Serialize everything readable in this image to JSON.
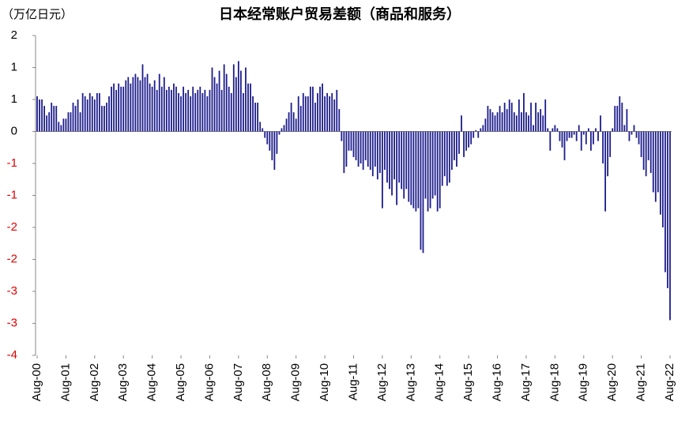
{
  "chart_data": {
    "type": "bar",
    "title": "日本经常账户贸易差额（商品和服务）",
    "unit_label": "（万亿日元）",
    "color": "#1c1c8c",
    "tick_color": "#000000",
    "negative_tick_color": "#e00000",
    "ylim": [
      -3.5,
      1.5
    ],
    "yticks": [
      {
        "value": 1.5,
        "label": "2"
      },
      1,
      {
        "value": 0.5,
        "label": "1"
      },
      0,
      {
        "value": -0.5,
        "label": "-1"
      },
      -1,
      {
        "value": -1.5,
        "label": "-2"
      },
      -2,
      {
        "value": -2.5,
        "label": "-3"
      },
      -3,
      {
        "value": -3.5,
        "label": "-4"
      }
    ],
    "categories": [
      "Aug-00",
      null,
      null,
      null,
      null,
      null,
      null,
      null,
      null,
      null,
      null,
      null,
      "Aug-01",
      null,
      null,
      null,
      null,
      null,
      null,
      null,
      null,
      null,
      null,
      null,
      "Aug-02",
      null,
      null,
      null,
      null,
      null,
      null,
      null,
      null,
      null,
      null,
      null,
      "Aug-03",
      null,
      null,
      null,
      null,
      null,
      null,
      null,
      null,
      null,
      null,
      null,
      "Aug-04",
      null,
      null,
      null,
      null,
      null,
      null,
      null,
      null,
      null,
      null,
      null,
      "Aug-05",
      null,
      null,
      null,
      null,
      null,
      null,
      null,
      null,
      null,
      null,
      null,
      "Aug-06",
      null,
      null,
      null,
      null,
      null,
      null,
      null,
      null,
      null,
      null,
      null,
      "Aug-07",
      null,
      null,
      null,
      null,
      null,
      null,
      null,
      null,
      null,
      null,
      null,
      "Aug-08",
      null,
      null,
      null,
      null,
      null,
      null,
      null,
      null,
      null,
      null,
      null,
      "Aug-09",
      null,
      null,
      null,
      null,
      null,
      null,
      null,
      null,
      null,
      null,
      null,
      "Aug-10",
      null,
      null,
      null,
      null,
      null,
      null,
      null,
      null,
      null,
      null,
      null,
      "Aug-11",
      null,
      null,
      null,
      null,
      null,
      null,
      null,
      null,
      null,
      null,
      null,
      "Aug-12",
      null,
      null,
      null,
      null,
      null,
      null,
      null,
      null,
      null,
      null,
      null,
      "Aug-13",
      null,
      null,
      null,
      null,
      null,
      null,
      null,
      null,
      null,
      null,
      null,
      "Aug-14",
      null,
      null,
      null,
      null,
      null,
      null,
      null,
      null,
      null,
      null,
      null,
      "Aug-15",
      null,
      null,
      null,
      null,
      null,
      null,
      null,
      null,
      null,
      null,
      null,
      "Aug-16",
      null,
      null,
      null,
      null,
      null,
      null,
      null,
      null,
      null,
      null,
      null,
      "Aug-17",
      null,
      null,
      null,
      null,
      null,
      null,
      null,
      null,
      null,
      null,
      null,
      "Aug-18",
      null,
      null,
      null,
      null,
      null,
      null,
      null,
      null,
      null,
      null,
      null,
      "Aug-19",
      null,
      null,
      null,
      null,
      null,
      null,
      null,
      null,
      null,
      null,
      null,
      "Aug-20",
      null,
      null,
      null,
      null,
      null,
      null,
      null,
      null,
      null,
      null,
      null,
      "Aug-21",
      null,
      null,
      null,
      null,
      null,
      null,
      null,
      null,
      null,
      null,
      null,
      "Aug-22"
    ],
    "values": [
      0.55,
      0.5,
      0.5,
      0.4,
      0.25,
      0.3,
      0.45,
      0.4,
      0.4,
      0.15,
      0.1,
      0.2,
      0.2,
      0.3,
      0.3,
      0.45,
      0.4,
      0.5,
      0.3,
      0.6,
      0.55,
      0.5,
      0.6,
      0.55,
      0.5,
      0.6,
      0.6,
      0.4,
      0.4,
      0.45,
      0.55,
      0.7,
      0.75,
      0.65,
      0.75,
      0.7,
      0.7,
      0.8,
      0.85,
      0.75,
      0.85,
      0.9,
      0.85,
      0.8,
      1.05,
      0.85,
      0.9,
      0.75,
      0.7,
      0.8,
      0.65,
      0.9,
      0.7,
      0.85,
      0.65,
      0.7,
      0.65,
      0.75,
      0.7,
      0.6,
      0.55,
      0.7,
      0.6,
      0.65,
      0.55,
      0.7,
      0.6,
      0.65,
      0.7,
      0.6,
      0.65,
      0.55,
      0.65,
      1.0,
      0.85,
      0.75,
      0.95,
      0.65,
      1.05,
      0.9,
      0.7,
      0.6,
      1.05,
      0.85,
      1.1,
      0.95,
      0.6,
      1.0,
      0.75,
      0.75,
      0.55,
      0.45,
      0.45,
      0.15,
      0.05,
      -0.1,
      -0.2,
      -0.3,
      -0.45,
      -0.6,
      -0.35,
      -0.05,
      0.05,
      0.1,
      0.2,
      0.3,
      0.45,
      0.3,
      0.2,
      0.55,
      0.4,
      0.6,
      0.55,
      0.55,
      0.7,
      0.7,
      0.45,
      0.6,
      0.7,
      0.75,
      0.55,
      0.6,
      0.55,
      0.6,
      0.5,
      0.65,
      0.35,
      -0.15,
      -0.65,
      -0.55,
      -0.3,
      -0.3,
      -0.4,
      -0.45,
      -0.55,
      -0.5,
      -0.6,
      -0.45,
      -0.55,
      -0.6,
      -0.7,
      -0.55,
      -0.75,
      -0.65,
      -1.2,
      -0.6,
      -0.8,
      -0.9,
      -1.0,
      -0.75,
      -1.15,
      -0.8,
      -0.9,
      -1.05,
      -0.9,
      -1.1,
      -1.15,
      -1.2,
      -1.25,
      -1.2,
      -1.85,
      -1.9,
      -1.05,
      -1.25,
      -1.2,
      -1.05,
      -1.0,
      -1.25,
      -1.2,
      -0.85,
      -0.7,
      -0.85,
      -0.8,
      -0.6,
      -0.45,
      -0.55,
      -0.35,
      0.25,
      -0.4,
      -0.3,
      -0.25,
      -0.2,
      -0.1,
      0.02,
      -0.1,
      0.05,
      0.1,
      0.2,
      0.4,
      0.35,
      0.3,
      0.25,
      0.3,
      0.4,
      0.3,
      0.45,
      0.35,
      0.5,
      0.45,
      0.3,
      0.25,
      0.5,
      0.3,
      0.6,
      0.3,
      0.25,
      0.45,
      0.1,
      0.45,
      0.3,
      0.35,
      0.25,
      0.5,
      0.05,
      -0.3,
      0.05,
      0.1,
      0.05,
      -0.15,
      -0.25,
      -0.45,
      -0.15,
      -0.1,
      -0.1,
      -0.05,
      -0.15,
      0.1,
      -0.3,
      -0.05,
      -0.2,
      0.05,
      -0.3,
      -0.2,
      0.05,
      -0.15,
      0.25,
      -0.5,
      -1.25,
      -0.7,
      -0.4,
      0.05,
      0.4,
      0.4,
      0.55,
      0.45,
      0.1,
      0.35,
      -0.15,
      -0.05,
      0.1,
      -0.1,
      -0.2,
      -0.4,
      -0.6,
      -0.7,
      -0.45,
      -0.65,
      -0.95,
      -1.1,
      -0.95,
      -1.3,
      -1.5,
      -2.2,
      -2.45,
      -2.95
    ]
  }
}
